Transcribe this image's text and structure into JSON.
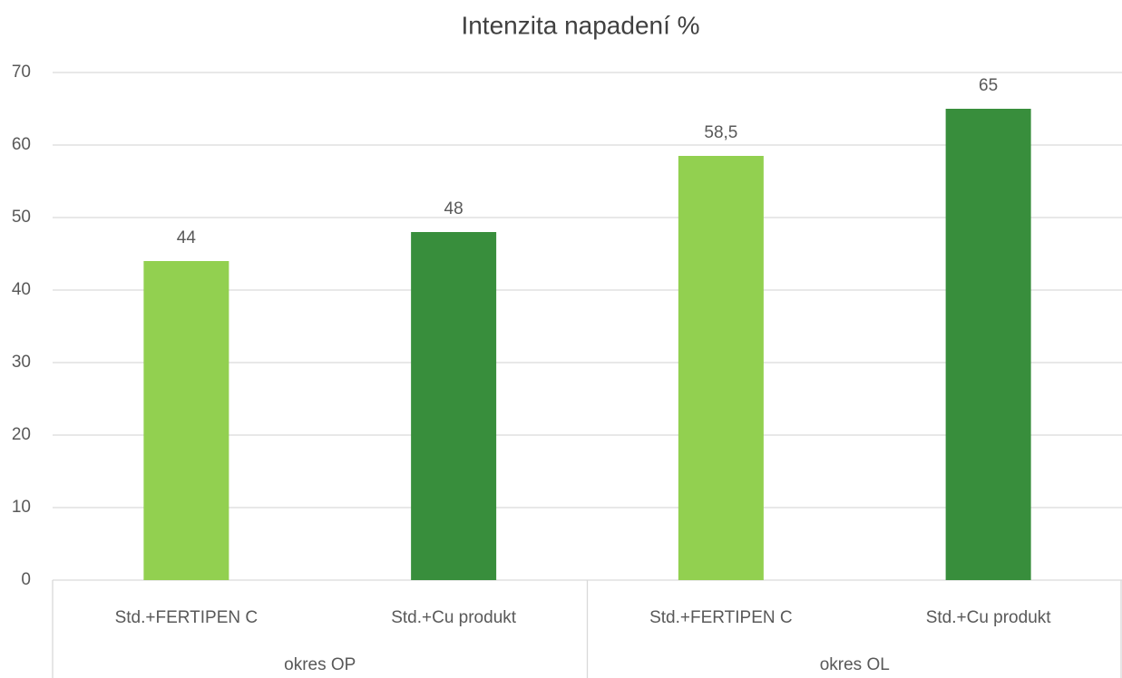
{
  "chart_data": {
    "type": "bar",
    "title": "Intenzita napadení %",
    "categories": [
      "Std.+FERTIPEN C",
      "Std.+Cu produkt",
      "Std.+FERTIPEN C",
      "Std.+Cu produkt"
    ],
    "groups": [
      "okres OP",
      "okres OL"
    ],
    "values": [
      44,
      48,
      58.5,
      65
    ],
    "value_labels": [
      "44",
      "48",
      "58,5",
      "65"
    ],
    "colors": [
      "#92d050",
      "#388e3c",
      "#92d050",
      "#388e3c"
    ],
    "ylim": [
      0,
      70
    ],
    "yticks": [
      0,
      10,
      20,
      30,
      40,
      50,
      60,
      70
    ],
    "grid": true
  }
}
